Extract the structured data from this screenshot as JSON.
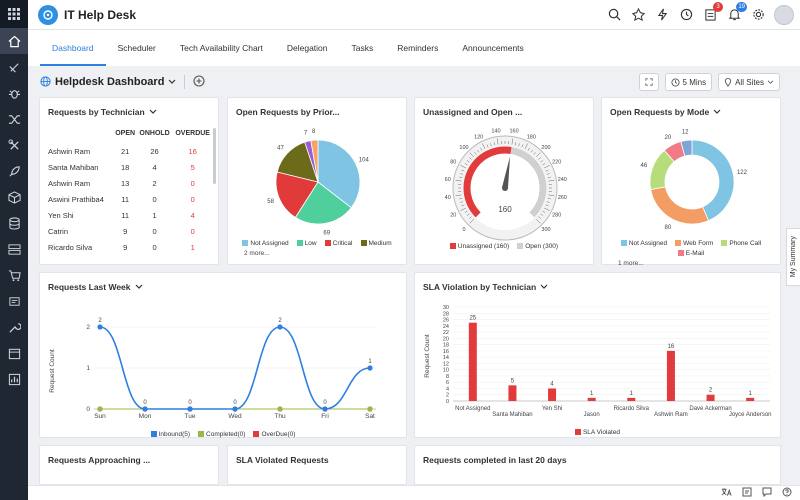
{
  "app": {
    "title": "IT Help Desk"
  },
  "topbar": {
    "notifications_count": "3",
    "announcements_count": "19"
  },
  "tabs": [
    "Dashboard",
    "Scheduler",
    "Tech Availability Chart",
    "Delegation",
    "Tasks",
    "Reminders",
    "Announcements"
  ],
  "dashboard": {
    "title": "Helpdesk Dashboard",
    "refresh": "5 Mins",
    "site": "All Sites"
  },
  "tech_card": {
    "title": "Requests by Technician",
    "headers": [
      "",
      "OPEN",
      "ONHOLD",
      "OVERDUE"
    ],
    "rows": [
      [
        "Ashwin Ram",
        "21",
        "26",
        "16"
      ],
      [
        "Santa Mahiban",
        "18",
        "4",
        "5"
      ],
      [
        "Ashwin Ram",
        "13",
        "2",
        "0"
      ],
      [
        "Aswini Prathiba4",
        "11",
        "0",
        "0"
      ],
      [
        "Yen Shi",
        "11",
        "1",
        "4"
      ],
      [
        "Catrin",
        "9",
        "0",
        "0"
      ],
      [
        "Ricardo Silva",
        "9",
        "0",
        "1"
      ]
    ]
  },
  "priority_card": {
    "title": "Open Requests by Prior...",
    "legend": [
      "Not Assigned",
      "Low",
      "Critical",
      "Medium"
    ],
    "more": "2 more..."
  },
  "gauge_card": {
    "title": "Unassigned and Open ...",
    "ticks": [
      "0",
      "20",
      "40",
      "60",
      "80",
      "100",
      "120",
      "140",
      "160",
      "180",
      "200",
      "220",
      "240",
      "260",
      "280",
      "300"
    ],
    "legend_unassigned": "Unassigned (160)",
    "legend_open": "Open (300)"
  },
  "mode_card": {
    "title": "Open Requests by Mode",
    "legend": [
      "Not Assigned",
      "Web Form",
      "Phone Call",
      "E-Mail"
    ],
    "more": "1 more..."
  },
  "week_card": {
    "title": "Requests Last Week",
    "legend": [
      "Inbound(5)",
      "Completed(0)",
      "OverDue(0)"
    ]
  },
  "sla_card": {
    "title": "SLA Violation by Technician",
    "legend": [
      "SLA Violated"
    ]
  },
  "bottom_cards": [
    "Requests Approaching ...",
    "SLA Violated Requests",
    "Requests completed in last 20 days"
  ],
  "summary_tab": "My Summary",
  "colors": {
    "accent": "#2f7fe0",
    "red": "#e23b3b",
    "sidebar": "#1f2733"
  },
  "chart_data": [
    {
      "type": "pie",
      "title": "Open Requests by Prior...",
      "categories": [
        "Not Assigned",
        "Low",
        "Critical",
        "Medium",
        "(2 more)",
        "(2 more)"
      ],
      "values": [
        104,
        69,
        58,
        47,
        7,
        8
      ],
      "colors": [
        "#7fc4e2",
        "#4fcf9c",
        "#e03a3a",
        "#6b6b1a",
        "#9a5fd0",
        "#f6a26a"
      ]
    },
    {
      "type": "pie",
      "title": "Open Requests by Mode",
      "categories": [
        "Not Assigned",
        "Web Form",
        "Phone Call",
        "E-Mail",
        "(1 more)"
      ],
      "values": [
        122,
        80,
        46,
        20,
        12
      ],
      "colors": [
        "#7fc4e2",
        "#f39c63",
        "#b7dd7a",
        "#f07b86",
        "#7ea4d8"
      ]
    },
    {
      "type": "line",
      "title": "Requests Last Week",
      "categories": [
        "Sun",
        "Mon",
        "Tue",
        "Wed",
        "Thu",
        "Fri",
        "Sat"
      ],
      "ylabel": "Request Count",
      "ylim": [
        0,
        2
      ],
      "yticks": [
        "0",
        "1",
        "2"
      ],
      "series": [
        {
          "name": "Inbound(5)",
          "values": [
            2,
            0,
            0,
            0,
            2,
            0,
            1
          ],
          "color": "#2f7fe0"
        },
        {
          "name": "Completed(0)",
          "values": [
            0,
            0,
            0,
            0,
            0,
            0,
            0
          ],
          "color": "#9ab84a"
        },
        {
          "name": "OverDue(0)",
          "values": [
            0,
            0,
            0,
            0,
            0,
            0,
            0
          ],
          "color": "#e23b3b"
        }
      ]
    },
    {
      "type": "bar",
      "title": "SLA Violation by Technician",
      "categories": [
        "Not Assigned",
        "Santa Mahiban",
        "Yen Shi",
        "Jason",
        "Ricardo Silva",
        "Ashwin Ram",
        "Dave Ackerman",
        "Joyce Anderson"
      ],
      "values": [
        25,
        5,
        4,
        1,
        1,
        16,
        2,
        1
      ],
      "ylabel": "Request Count",
      "ylim": [
        0,
        30
      ],
      "yticks": [
        "0",
        "2",
        "4",
        "6",
        "8",
        "10",
        "12",
        "14",
        "16",
        "18",
        "20",
        "22",
        "24",
        "26",
        "28",
        "30"
      ],
      "series_name": "SLA Violated"
    },
    {
      "type": "gauge",
      "title": "Unassigned and Open ...",
      "min": 0,
      "max": 300,
      "values": {
        "Unassigned": 160,
        "Open": 300
      }
    }
  ]
}
